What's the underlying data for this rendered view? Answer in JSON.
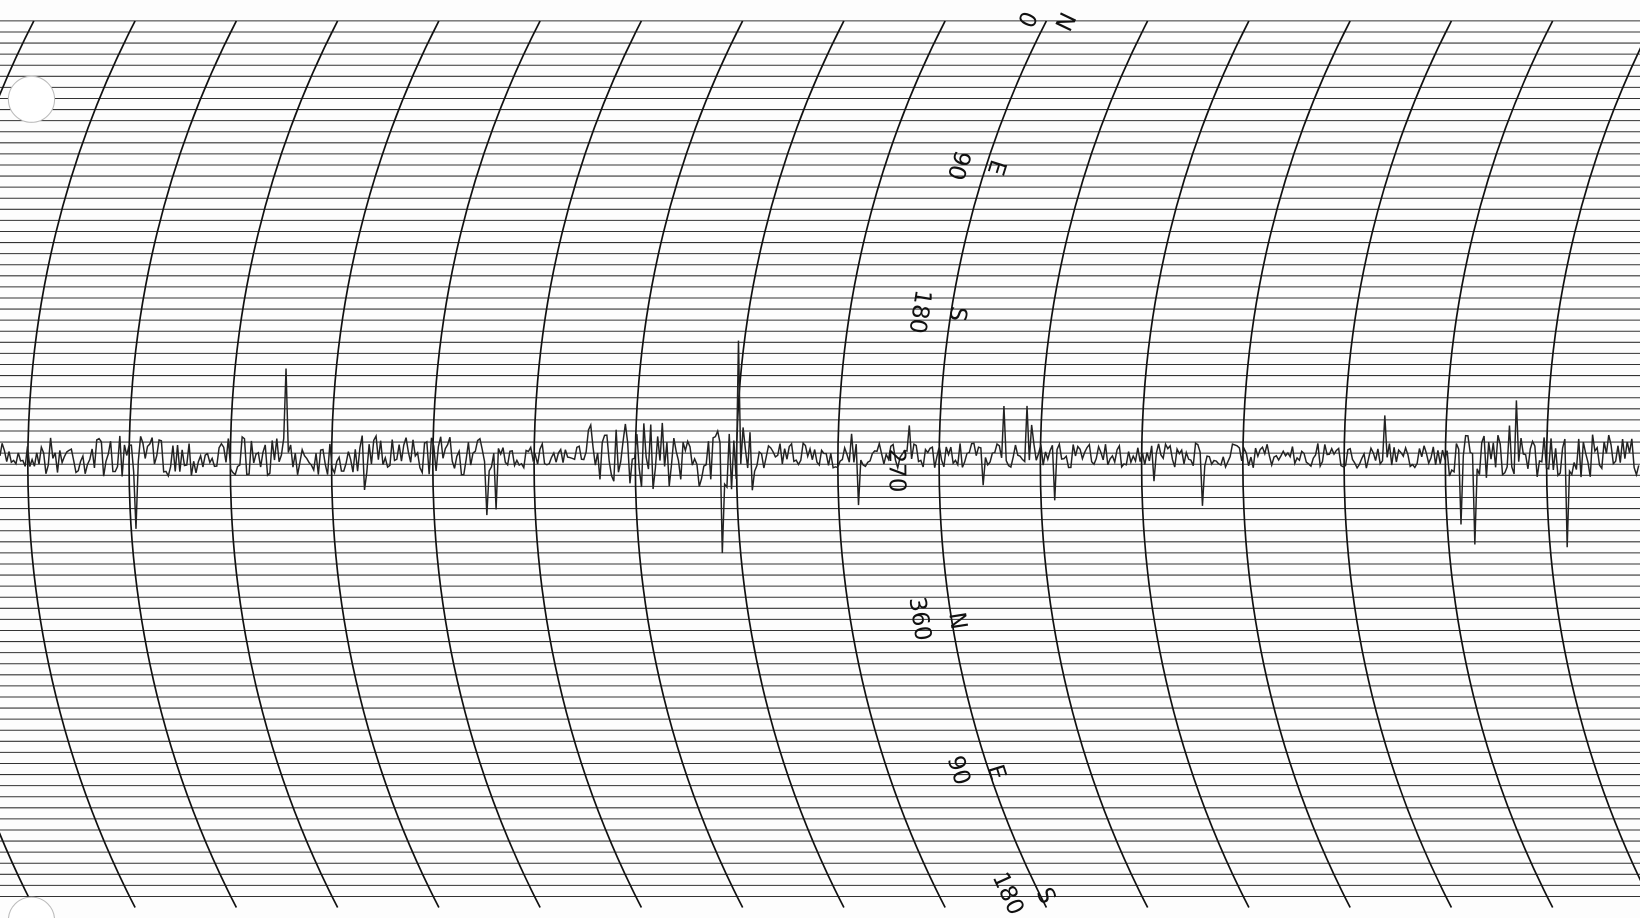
{
  "scale_labels": [
    {
      "degrees": "0",
      "direction": "N"
    },
    {
      "degrees": "90",
      "direction": "E"
    },
    {
      "degrees": "180",
      "direction": "S"
    },
    {
      "degrees": "270",
      "direction": null
    },
    {
      "degrees": "360",
      "direction": "N"
    },
    {
      "degrees": "90",
      "direction": "E"
    },
    {
      "degrees": "180",
      "direction": "S"
    }
  ]
}
